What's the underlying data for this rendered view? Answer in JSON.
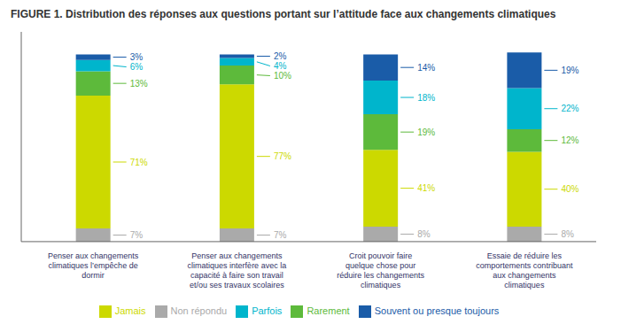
{
  "chart_data": {
    "type": "bar",
    "title": "FIGURE 1. Distribution des réponses aux questions portant sur l’attitude face aux changements climatiques",
    "categories": [
      "Penser aux changements\nclimatiques l’empêche de\ndormir",
      "Penser aux changements\nclimatiques interfère avec la\ncapacité à faire son travail\net/ou ses travaux scolaires",
      "Croit pouvoir faire\nquelque chose pour\nréduire les changements\nclimatiques",
      "Essaie de réduire les\ncomportements contribuant\naux changements\nclimatiques"
    ],
    "series": [
      {
        "name": "Non répondu",
        "color": "#aaaaaa",
        "values": [
          7,
          7,
          8,
          8
        ],
        "value_labels": [
          "7%",
          "7%",
          "8%",
          "8%"
        ]
      },
      {
        "name": "Jamais",
        "color": "#ccd900",
        "values": [
          71,
          77,
          41,
          40
        ],
        "value_labels": [
          "71%",
          "77%",
          "41%",
          "40%"
        ]
      },
      {
        "name": "Rarement",
        "color": "#5dba3b",
        "values": [
          13,
          10,
          19,
          12
        ],
        "value_labels": [
          "13%",
          "10%",
          "19%",
          "12%"
        ]
      },
      {
        "name": "Parfois",
        "color": "#00b5cc",
        "values": [
          6,
          4,
          18,
          22
        ],
        "value_labels": [
          "6%",
          "4%",
          "18%",
          "22%"
        ]
      },
      {
        "name": "Souvent ou presque toujours",
        "color": "#1a5ca8",
        "values": [
          3,
          2,
          14,
          19
        ],
        "value_labels": [
          "3%",
          "2%",
          "14%",
          "19%"
        ]
      }
    ],
    "stacked": true,
    "data_labels": true,
    "ylim": [
      0,
      112
    ],
    "tick_labels": "x",
    "grid": false,
    "legend": "bottom"
  }
}
